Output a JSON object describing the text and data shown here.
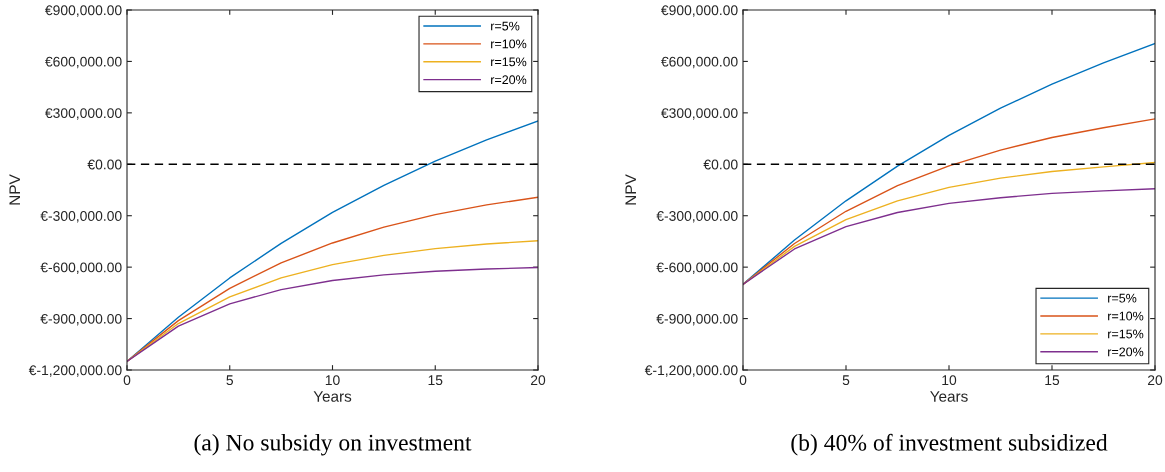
{
  "chart_data": [
    {
      "type": "line",
      "xlabel": "Years",
      "ylabel": "NPV",
      "annotations": [
        "(a) No subsidy on investment"
      ],
      "x": [
        0,
        2.5,
        5,
        7.5,
        10,
        12.5,
        15,
        17.5,
        20
      ],
      "series": [
        {
          "name": "r=5%",
          "color": "#0072bd",
          "values": [
            -1150000,
            -892000,
            -663000,
            -461000,
            -281000,
            -123000,
            18000,
            142000,
            252000
          ]
        },
        {
          "name": "r=10%",
          "color": "#d95319",
          "values": [
            -1150000,
            -912000,
            -724000,
            -575000,
            -459000,
            -367000,
            -294000,
            -237000,
            -192000
          ]
        },
        {
          "name": "r=15%",
          "color": "#edb120",
          "values": [
            -1150000,
            -929000,
            -773000,
            -663000,
            -585000,
            -531000,
            -492000,
            -465000,
            -446000
          ]
        },
        {
          "name": "r=20%",
          "color": "#7e2f8e",
          "values": [
            -1150000,
            -944000,
            -814000,
            -731000,
            -678000,
            -645000,
            -624000,
            -611000,
            -602000
          ]
        }
      ],
      "xlim": [
        0,
        20
      ],
      "xticks": [
        0,
        5,
        10,
        15,
        20
      ],
      "ylim": [
        -1200000,
        900000
      ],
      "yticks": [
        {
          "value": -1200000,
          "label": "€-1,200,000.00"
        },
        {
          "value": -900000,
          "label": "€-900,000.00"
        },
        {
          "value": -600000,
          "label": "€-600,000.00"
        },
        {
          "value": -300000,
          "label": "€-300,000.00"
        },
        {
          "value": 0,
          "label": "€0.00"
        },
        {
          "value": 300000,
          "label": "€300,000.00"
        },
        {
          "value": 600000,
          "label": "€600,000.00"
        },
        {
          "value": 900000,
          "label": "€900,000.00"
        }
      ],
      "ref_lines": [
        {
          "axis": "y",
          "value": 0,
          "color": "#000000",
          "line_style": "dashed"
        }
      ],
      "legend": "top right",
      "grid": false,
      "marker": "none",
      "line_style": "solid"
    },
    {
      "type": "line",
      "xlabel": "Years",
      "ylabel": "NPV",
      "annotations": [
        "(b) 40% of investment subsidized"
      ],
      "x": [
        0,
        2.5,
        5,
        7.5,
        10,
        12.5,
        15,
        17.5,
        20
      ],
      "series": [
        {
          "name": "r=5%",
          "color": "#0072bd",
          "values": [
            -700000,
            -442000,
            -213000,
            -11000,
            169000,
            327000,
            468000,
            592000,
            705000
          ]
        },
        {
          "name": "r=10%",
          "color": "#d95319",
          "values": [
            -700000,
            -462000,
            -274000,
            -125000,
            -9000,
            83000,
            156000,
            213000,
            265000
          ]
        },
        {
          "name": "r=15%",
          "color": "#edb120",
          "values": [
            -700000,
            -479000,
            -323000,
            -213000,
            -135000,
            -81000,
            -42000,
            -15000,
            10000
          ]
        },
        {
          "name": "r=20%",
          "color": "#7e2f8e",
          "values": [
            -700000,
            -494000,
            -364000,
            -281000,
            -228000,
            -195000,
            -170000,
            -155000,
            -143000
          ]
        }
      ],
      "xlim": [
        0,
        20
      ],
      "xticks": [
        0,
        5,
        10,
        15,
        20
      ],
      "ylim": [
        -1200000,
        900000
      ],
      "yticks": [
        {
          "value": -1200000,
          "label": "€-1,200,000.00"
        },
        {
          "value": -900000,
          "label": "€-900,000.00"
        },
        {
          "value": -600000,
          "label": "€-600,000.00"
        },
        {
          "value": -300000,
          "label": "€-300,000.00"
        },
        {
          "value": 0,
          "label": "€0.00"
        },
        {
          "value": 300000,
          "label": "€300,000.00"
        },
        {
          "value": 600000,
          "label": "€600,000.00"
        },
        {
          "value": 900000,
          "label": "€900,000.00"
        }
      ],
      "ref_lines": [
        {
          "axis": "y",
          "value": 0,
          "color": "#000000",
          "line_style": "dashed"
        }
      ],
      "legend": "bottom right",
      "grid": false,
      "marker": "none",
      "line_style": "solid"
    }
  ]
}
